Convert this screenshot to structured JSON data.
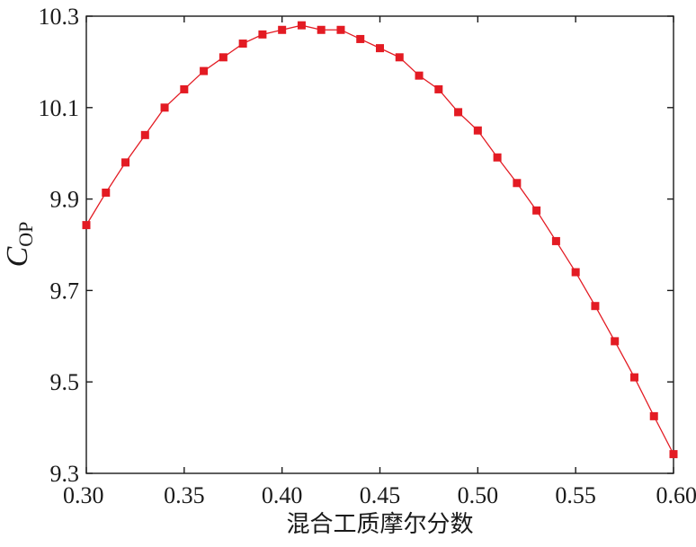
{
  "chart_data": {
    "type": "line",
    "title": "",
    "xlabel": "混合工质摩尔分数",
    "ylabel": {
      "main": "C",
      "sub": "OP"
    },
    "xlim": [
      0.3,
      0.6
    ],
    "ylim": [
      9.3,
      10.3
    ],
    "grid": false,
    "x_ticks": [
      "0.30",
      "0.35",
      "0.40",
      "0.45",
      "0.50",
      "0.55",
      "0.60"
    ],
    "y_ticks": [
      "9.3",
      "9.5",
      "9.7",
      "9.9",
      "10.1",
      "10.3"
    ],
    "marker": "square",
    "color": "#e31b23",
    "series": [
      {
        "x": [
          0.3,
          0.31,
          0.32,
          0.33,
          0.34,
          0.35,
          0.36,
          0.37,
          0.38,
          0.39,
          0.4,
          0.41,
          0.42,
          0.43,
          0.44,
          0.45,
          0.46,
          0.47,
          0.48,
          0.49,
          0.5,
          0.51,
          0.52,
          0.53,
          0.54,
          0.55,
          0.56,
          0.57,
          0.58,
          0.59,
          0.6
        ],
        "y": [
          9.843,
          9.914,
          9.98,
          10.04,
          10.1,
          10.14,
          10.18,
          10.21,
          10.24,
          10.26,
          10.27,
          10.28,
          10.27,
          10.27,
          10.25,
          10.23,
          10.21,
          10.17,
          10.14,
          10.09,
          10.05,
          9.991,
          9.935,
          9.875,
          9.808,
          9.74,
          9.666,
          9.589,
          9.51,
          9.425,
          9.342
        ]
      }
    ]
  }
}
